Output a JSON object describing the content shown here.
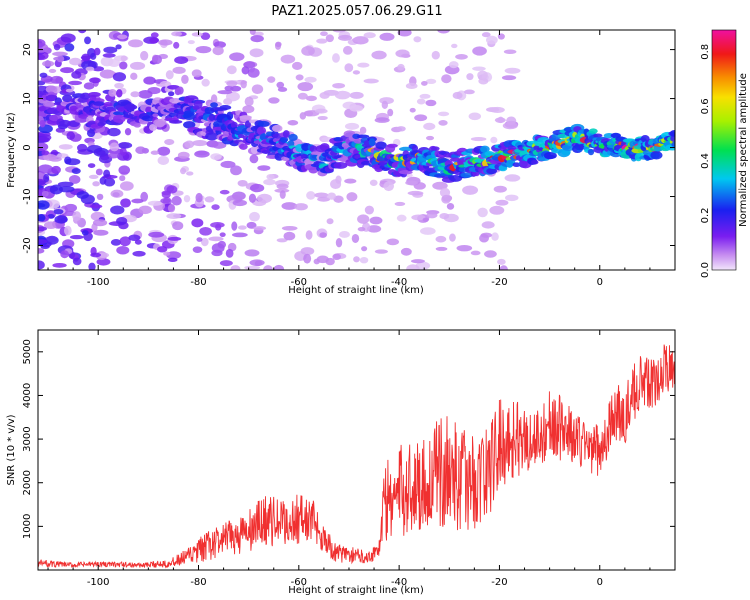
{
  "title": "PAZ1.2025.057.06.29.G11",
  "chart_data": [
    {
      "type": "heatmap",
      "xlabel": "Height of straight line (km)",
      "ylabel": "Frequency (Hz)",
      "xlim": [
        -112,
        15
      ],
      "ylim": [
        -25,
        24
      ],
      "x_ticks": [
        -100,
        -80,
        -60,
        -40,
        -20,
        0
      ],
      "y_ticks": [
        -20,
        -10,
        0,
        10,
        20
      ],
      "ridge": {
        "x": [
          -110,
          -100,
          -90,
          -85,
          -80,
          -75,
          -70,
          -65,
          -60,
          -55,
          -50,
          -45,
          -40,
          -35,
          -30,
          -25,
          -20,
          -15,
          -10,
          -5,
          0,
          5,
          10,
          15
        ],
        "freq": [
          8,
          8,
          7,
          9,
          6,
          5,
          3,
          1,
          -1,
          -3,
          0,
          -1,
          -3,
          -2,
          -4,
          -3,
          -2,
          -1,
          0,
          2,
          1,
          0,
          0,
          1
        ]
      },
      "colorbar": {
        "label": "Normalized spectral amplitude",
        "range": [
          0,
          0.88
        ],
        "ticks": [
          0.0,
          0.2,
          0.4,
          0.6,
          0.8
        ]
      }
    },
    {
      "type": "line",
      "xlabel": "Height of straight line (km)",
      "ylabel": "SNR (10 * v/v)",
      "xlim": [
        -112,
        15
      ],
      "ylim": [
        0,
        5500
      ],
      "x_ticks": [
        -100,
        -80,
        -60,
        -40,
        -20,
        0
      ],
      "y_ticks": [
        1000,
        2000,
        3000,
        4000,
        5000
      ],
      "series": [
        {
          "name": "SNR",
          "color": "#f03030",
          "x": [
            -112,
            -105,
            -100,
            -95,
            -90,
            -85,
            -82,
            -78,
            -75,
            -70,
            -67,
            -62,
            -60,
            -57,
            -53,
            -50,
            -46,
            -44,
            -43,
            -41,
            -38,
            -35,
            -32,
            -30,
            -28,
            -25,
            -22,
            -20,
            -18,
            -15,
            -12,
            -10,
            -7,
            -5,
            -3,
            0,
            3,
            5,
            8,
            10,
            13,
            15
          ],
          "values": [
            160,
            110,
            140,
            120,
            110,
            180,
            300,
            550,
            700,
            850,
            1150,
            1050,
            1200,
            1100,
            400,
            350,
            300,
            500,
            1500,
            1700,
            1900,
            2000,
            2200,
            2300,
            2100,
            2000,
            2300,
            2900,
            3000,
            3000,
            3000,
            3400,
            3200,
            3000,
            2900,
            2700,
            3600,
            3500,
            4400,
            4200,
            4600,
            4700
          ],
          "amplitude": [
            120,
            80,
            80,
            80,
            80,
            150,
            300,
            500,
            500,
            700,
            800,
            700,
            800,
            700,
            300,
            250,
            200,
            300,
            1300,
            1400,
            1500,
            1500,
            1700,
            1800,
            1600,
            1500,
            1500,
            1400,
            1300,
            1100,
            1000,
            1000,
            1000,
            900,
            800,
            800,
            900,
            900,
            900,
            800,
            800,
            700
          ]
        }
      ]
    }
  ]
}
